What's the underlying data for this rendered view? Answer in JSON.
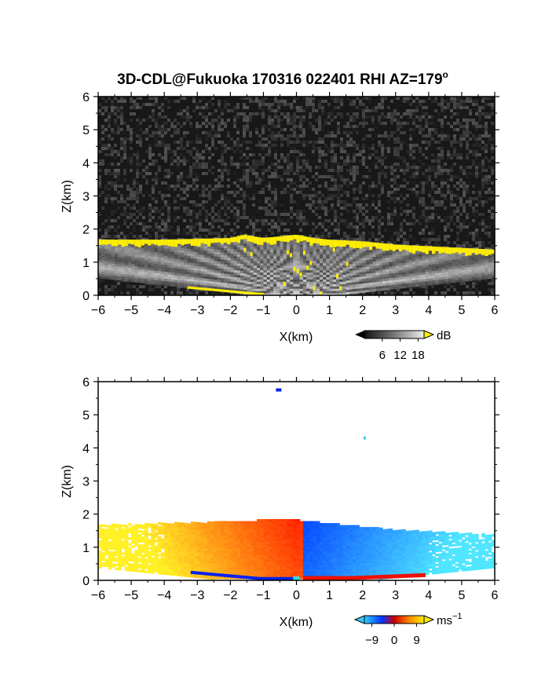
{
  "chart_data": [
    {
      "type": "heatmap",
      "title": "3D-CDL@Fukuoka 170316 022401 RHI AZ=179",
      "title_superscript": "o",
      "xlabel": "X(km)",
      "ylabel": "Z(km)",
      "xlim": [
        -6,
        6
      ],
      "ylim": [
        0,
        6
      ],
      "xticks": [
        -6,
        -5,
        -4,
        -3,
        -2,
        -1,
        0,
        1,
        2,
        3,
        4,
        5,
        6
      ],
      "yticks": [
        0,
        1,
        2,
        3,
        4,
        5,
        6
      ],
      "colorbar": {
        "label": "dB",
        "ticks": [
          6,
          12,
          18
        ],
        "range": [
          0,
          20
        ],
        "colormap": "grayscale with yellow over-range"
      },
      "layer_top_km": {
        "x": [
          -6,
          -4,
          -2,
          -1.6,
          -1,
          -0.5,
          0,
          0.5,
          1,
          2,
          3,
          4,
          5,
          6
        ],
        "z": [
          1.65,
          1.65,
          1.7,
          1.8,
          1.7,
          1.75,
          1.8,
          1.7,
          1.65,
          1.6,
          1.5,
          1.45,
          1.4,
          1.35
        ]
      },
      "background": "noise"
    },
    {
      "type": "heatmap",
      "title": "",
      "xlabel": "X(km)",
      "ylabel": "Z(km)",
      "xlim": [
        -6,
        6
      ],
      "ylim": [
        0,
        6
      ],
      "xticks": [
        -6,
        -5,
        -4,
        -3,
        -2,
        -1,
        0,
        1,
        2,
        3,
        4,
        5,
        6
      ],
      "yticks": [
        0,
        1,
        2,
        3,
        4,
        5,
        6
      ],
      "colorbar": {
        "label": "ms",
        "label_superscript": "−1",
        "ticks": [
          "−9",
          "0",
          "9"
        ],
        "range": [
          -12,
          12
        ],
        "colormap": "blue-cyan to red-yellow"
      },
      "layer_top_km": {
        "x": [
          -6,
          -4,
          -2,
          -1,
          0,
          1,
          2,
          3,
          4,
          5,
          6
        ],
        "z": [
          1.65,
          1.7,
          1.75,
          1.8,
          1.8,
          1.7,
          1.6,
          1.5,
          1.45,
          1.4,
          1.35
        ]
      },
      "velocity_sign": "negative (toward) at X<0 shown warm, positive at X>0 shown blue",
      "isolated_echoes": [
        {
          "x": -0.55,
          "z": 5.75
        },
        {
          "x": 2.1,
          "z": 4.3
        }
      ]
    }
  ]
}
